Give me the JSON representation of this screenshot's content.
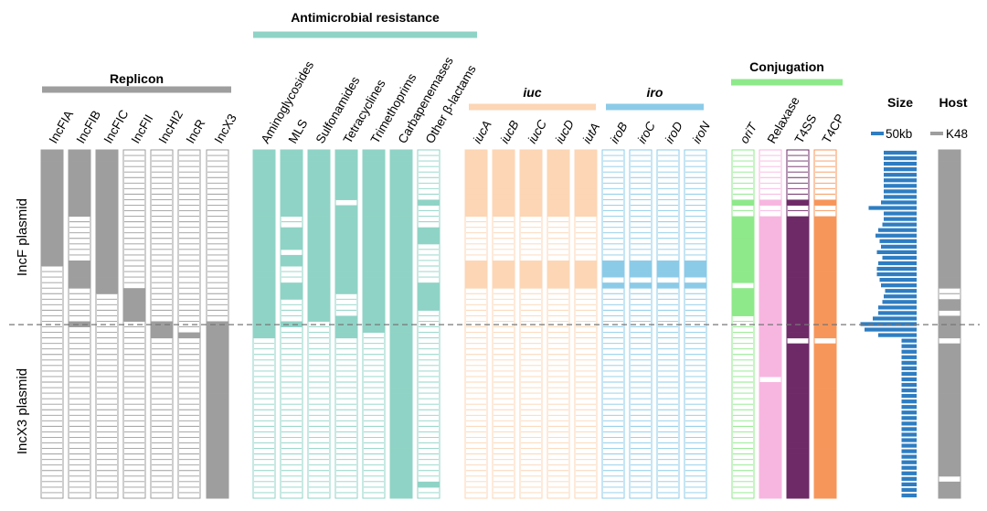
{
  "chart_data": {
    "type": "heatmap",
    "n_rows": 63,
    "divider_after_row": 31,
    "side_labels": {
      "top": "IncF plasmid",
      "bottom": "IncX3 plasmid"
    },
    "groups": [
      {
        "id": "replicon",
        "title": "Replicon",
        "color": "#9e9e9e",
        "italic_cols": false,
        "columns": [
          {
            "name": "IncFIA",
            "present": [
              [
                0,
                20
              ]
            ]
          },
          {
            "name": "IncFIB",
            "present": [
              [
                0,
                11
              ],
              [
                20,
                24
              ],
              [
                31,
                31
              ]
            ]
          },
          {
            "name": "IncFIC",
            "present": [
              [
                0,
                25
              ]
            ]
          },
          {
            "name": "IncFII",
            "present": [
              [
                25,
                30
              ]
            ]
          },
          {
            "name": "IncHI2",
            "present": [
              [
                31,
                33
              ]
            ]
          },
          {
            "name": "IncR",
            "present": [
              [
                33,
                33
              ]
            ]
          },
          {
            "name": "IncX3",
            "present": [
              [
                31,
                62
              ]
            ]
          }
        ]
      },
      {
        "id": "amr",
        "title": "Antimicrobial resistance",
        "color": "#8fd3c6",
        "italic_cols": false,
        "columns": [
          {
            "name": "Aminoglycosides",
            "present": [
              [
                0,
                33
              ]
            ]
          },
          {
            "name": "MLS",
            "present": [
              [
                0,
                11
              ],
              [
                14,
                17
              ],
              [
                19,
                20
              ],
              [
                24,
                25
              ],
              [
                26,
                26
              ],
              [
                31,
                31
              ]
            ]
          },
          {
            "name": "Sulfonamides",
            "present": [
              [
                0,
                30
              ]
            ]
          },
          {
            "name": "Tetracyclines",
            "present": [
              [
                0,
                8
              ],
              [
                10,
                25
              ],
              [
                30,
                33
              ]
            ]
          },
          {
            "name": "Trimethoprims",
            "present": [
              [
                0,
                32
              ]
            ]
          },
          {
            "name": "Carbapenemases",
            "present": [
              [
                0,
                62
              ]
            ]
          },
          {
            "name": "Other β-lactams",
            "present": [
              [
                9,
                9
              ],
              [
                14,
                16
              ],
              [
                24,
                28
              ],
              [
                60,
                60
              ]
            ]
          }
        ]
      },
      {
        "id": "iuc",
        "title": "iuc",
        "color": "#fcd6b5",
        "italic_cols": true,
        "columns": [
          {
            "name": "iucA",
            "present": [
              [
                0,
                11
              ],
              [
                20,
                24
              ]
            ]
          },
          {
            "name": "iucB",
            "present": [
              [
                0,
                11
              ],
              [
                20,
                24
              ]
            ]
          },
          {
            "name": "iucC",
            "present": [
              [
                0,
                11
              ],
              [
                20,
                24
              ]
            ]
          },
          {
            "name": "iucD",
            "present": [
              [
                0,
                11
              ],
              [
                20,
                24
              ]
            ]
          },
          {
            "name": "iutA",
            "present": [
              [
                0,
                11
              ],
              [
                20,
                24
              ]
            ]
          }
        ]
      },
      {
        "id": "iro",
        "title": "iro",
        "color": "#8ccbe8",
        "italic_cols": true,
        "columns": [
          {
            "name": "iroB",
            "present": [
              [
                20,
                22
              ],
              [
                24,
                24
              ]
            ]
          },
          {
            "name": "iroC",
            "present": [
              [
                20,
                22
              ],
              [
                24,
                24
              ]
            ]
          },
          {
            "name": "iroD",
            "present": [
              [
                20,
                22
              ],
              [
                24,
                24
              ]
            ]
          },
          {
            "name": "iroN",
            "present": [
              [
                20,
                22
              ],
              [
                24,
                24
              ]
            ]
          }
        ]
      },
      {
        "id": "conj",
        "title": "Conjugation",
        "color": "#8ee98a",
        "italic_cols": false,
        "columns": [
          {
            "name": "oriT",
            "italic": true,
            "present": [
              [
                9,
                9
              ],
              [
                12,
                23
              ],
              [
                25,
                29
              ]
            ],
            "color": "#8ee98a"
          },
          {
            "name": "Relaxase",
            "italic": false,
            "present": [
              [
                9,
                9
              ],
              [
                12,
                40
              ],
              [
                42,
                62
              ]
            ],
            "color": "#f7b6e0"
          },
          {
            "name": "T4SS",
            "italic": false,
            "present": [
              [
                9,
                9
              ],
              [
                12,
                33
              ],
              [
                35,
                62
              ]
            ],
            "color": "#6e2a67"
          },
          {
            "name": "T4CP",
            "italic": false,
            "present": [
              [
                9,
                9
              ],
              [
                12,
                33
              ],
              [
                35,
                62
              ]
            ],
            "color": "#f7965a"
          }
        ]
      }
    ],
    "size": {
      "title": "Size",
      "legend": "50kb",
      "color": "#2e7dc2",
      "values_kb": [
        120,
        120,
        120,
        120,
        120,
        120,
        120,
        120,
        120,
        130,
        175,
        120,
        120,
        125,
        140,
        150,
        135,
        130,
        145,
        125,
        140,
        145,
        145,
        135,
        130,
        115,
        120,
        125,
        140,
        140,
        160,
        205,
        190,
        140,
        55,
        55,
        55,
        55,
        55,
        55,
        55,
        55,
        55,
        55,
        55,
        55,
        55,
        55,
        55,
        55,
        55,
        55,
        55,
        55,
        55,
        55,
        55,
        55,
        55,
        55,
        55,
        55,
        55
      ]
    },
    "host": {
      "title": "Host",
      "legend": "K48",
      "color": "#9e9e9e",
      "present": [
        [
          0,
          24
        ],
        [
          27,
          28
        ],
        [
          30,
          33
        ],
        [
          35,
          58
        ],
        [
          60,
          62
        ]
      ]
    }
  }
}
